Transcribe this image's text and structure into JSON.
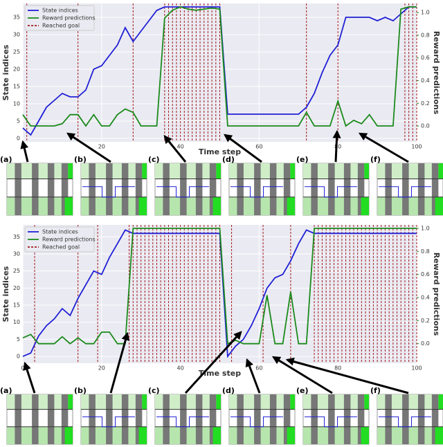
{
  "chart_data": [
    {
      "type": "line",
      "x_label": "Time step",
      "y_label": "State indices",
      "y2_label": "Reward predictions",
      "x": [
        0,
        2,
        4,
        6,
        8,
        10,
        12,
        14,
        16,
        18,
        20,
        22,
        24,
        26,
        28,
        30,
        32,
        34,
        36,
        38,
        40,
        42,
        44,
        46,
        48,
        50,
        52,
        54,
        56,
        58,
        60,
        62,
        64,
        66,
        68,
        70,
        72,
        74,
        76,
        78,
        80,
        82,
        84,
        86,
        88,
        90,
        92,
        94,
        96,
        98,
        100
      ],
      "series": [
        {
          "name": "State indices",
          "color": "#1f1fd6",
          "values": [
            3,
            1,
            5,
            9,
            11,
            13,
            12,
            12,
            14,
            20,
            21,
            24,
            27,
            32,
            28,
            31,
            34,
            37,
            38,
            38,
            38,
            38,
            38,
            38,
            38,
            38,
            7,
            7,
            7,
            7,
            7,
            7,
            7,
            7,
            7,
            7,
            9,
            13,
            19,
            24,
            27,
            35,
            35,
            35,
            35,
            34,
            35,
            34,
            36,
            38,
            38
          ]
        },
        {
          "name": "Reward predictions",
          "color": "#1a8a1a",
          "axis": "y2",
          "values": [
            0.1,
            0,
            0,
            0,
            0,
            0.02,
            0.1,
            0.1,
            0,
            0.1,
            0,
            0,
            0.1,
            0.15,
            0.12,
            0,
            0,
            0,
            0.95,
            1.02,
            1.05,
            1.03,
            1.02,
            1.03,
            1.04,
            1.03,
            0,
            0,
            0,
            0,
            0,
            0,
            0,
            0,
            0,
            0,
            0.12,
            0,
            0,
            0,
            0.22,
            0,
            0.05,
            0.02,
            0.1,
            0,
            0,
            0,
            1.03,
            1.05,
            1.05
          ]
        },
        {
          "name": "Reached goal",
          "color": "#a01818",
          "x": [
            1,
            14,
            28,
            36,
            37,
            38,
            39,
            40,
            41,
            42,
            43,
            44,
            45,
            46,
            47,
            48,
            49,
            50,
            72,
            80,
            97,
            98,
            99,
            100
          ]
        }
      ],
      "xlim": [
        0,
        100
      ],
      "xticks": [
        0,
        20,
        40,
        60,
        80,
        100
      ],
      "ylim": [
        -1,
        39
      ],
      "yticks": [
        0,
        5,
        10,
        15,
        20,
        25,
        30,
        35
      ],
      "y2lim": [
        -0.14,
        1.08
      ],
      "y2ticks": [
        {
          "value": 0,
          "label": "0.0"
        },
        {
          "value": 0.2,
          "label": "0.2"
        },
        {
          "value": 0.4,
          "label": "0.4"
        },
        {
          "value": 0.6,
          "label": "0.6"
        },
        {
          "value": 0.8,
          "label": "0.8"
        },
        {
          "value": 1,
          "label": "1.0"
        }
      ],
      "legend": "upper left",
      "annotations": [
        "(a)",
        "(b)",
        "(c)",
        "(d)",
        "(e)",
        "(f)"
      ]
    },
    {
      "type": "line",
      "x_label": "Time step",
      "y_label": "State indices",
      "y2_label": "Reward predictions",
      "x": [
        0,
        2,
        4,
        6,
        8,
        10,
        12,
        14,
        16,
        18,
        20,
        22,
        24,
        26,
        28,
        30,
        32,
        34,
        36,
        38,
        40,
        42,
        44,
        46,
        48,
        50,
        52,
        54,
        56,
        58,
        60,
        62,
        64,
        66,
        68,
        70,
        72,
        74,
        76,
        78,
        80,
        82,
        84,
        86,
        88,
        90,
        92,
        94,
        96,
        98,
        100
      ],
      "series": [
        {
          "name": "State indices",
          "color": "#1f1fd6",
          "values": [
            0,
            1,
            6,
            9,
            11,
            14,
            12,
            17,
            21,
            25,
            24,
            29,
            33,
            37,
            36,
            36,
            36,
            36,
            36,
            36,
            36,
            36,
            36,
            36,
            36,
            36,
            0,
            3,
            5,
            9,
            14,
            20,
            23,
            24,
            28,
            33,
            37,
            36,
            36,
            36,
            36,
            36,
            36,
            36,
            36,
            36,
            36,
            36,
            36,
            36,
            36
          ]
        },
        {
          "name": "Reward predictions",
          "color": "#1a8a1a",
          "axis": "y2",
          "values": [
            0.05,
            0.08,
            0,
            0,
            0,
            0.06,
            0,
            0.05,
            0,
            0,
            0.1,
            0.1,
            0,
            0,
            1,
            1,
            1,
            1,
            1,
            1,
            1,
            1,
            1,
            1,
            1,
            1,
            0,
            0.03,
            0,
            0,
            0,
            0.42,
            0,
            0,
            0.45,
            0,
            0,
            1,
            1,
            1,
            1,
            1,
            1,
            1,
            1,
            1,
            1,
            1,
            1,
            1,
            1
          ]
        },
        {
          "name": "Reached goal",
          "color": "#a01818",
          "x": [
            3,
            14,
            19,
            27,
            28,
            29,
            30,
            31,
            32,
            33,
            34,
            35,
            36,
            37,
            38,
            39,
            40,
            41,
            42,
            43,
            44,
            45,
            46,
            47,
            48,
            49,
            50,
            53,
            61,
            68,
            74,
            75,
            76,
            77,
            78,
            79,
            80,
            81,
            82,
            83,
            84,
            85,
            86,
            87,
            88,
            89,
            90,
            91,
            92,
            93,
            94,
            95,
            96,
            97,
            98,
            99,
            100
          ]
        }
      ],
      "xlim": [
        0,
        100
      ],
      "xticks": [
        0,
        20,
        40,
        60,
        80,
        100
      ],
      "ylim": [
        -2,
        38.5
      ],
      "yticks": [
        0,
        5,
        10,
        15,
        20,
        25,
        30,
        35
      ],
      "y2lim": [
        -0.17,
        1.03
      ],
      "y2ticks": [
        {
          "value": 0,
          "label": "0.0"
        },
        {
          "value": 0.2,
          "label": "0.2"
        },
        {
          "value": 0.4,
          "label": "0.4"
        },
        {
          "value": 0.6,
          "label": "0.6"
        },
        {
          "value": 0.8,
          "label": "0.8"
        },
        {
          "value": 1,
          "label": "1.0"
        }
      ],
      "legend": "upper left",
      "annotations": [
        "(a)",
        "(b)",
        "(c)",
        "(d)",
        "(e)",
        "(f)"
      ]
    }
  ]
}
